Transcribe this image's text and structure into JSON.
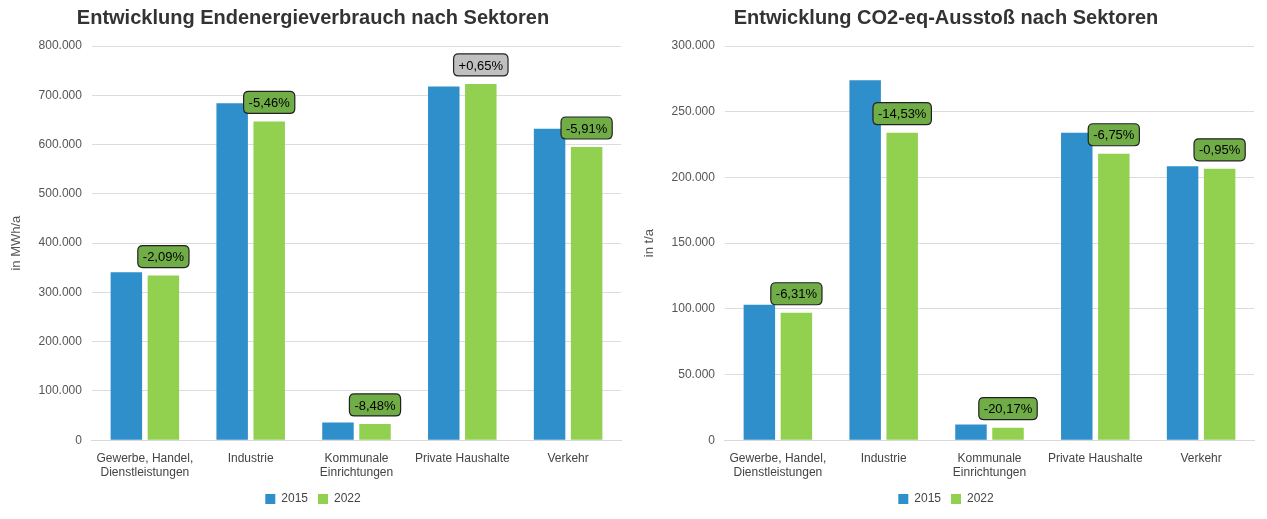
{
  "chart_data": [
    {
      "type": "bar",
      "title": "Entwicklung Endenergieverbrauch nach Sektoren",
      "ylabel": "in MWh/a",
      "categories": [
        "Gewerbe, Handel, Dienstleistungen",
        "Industrie",
        "Kommunale Einrichtungen",
        "Private Haushalte",
        "Verkehr"
      ],
      "series": [
        {
          "name": "2015",
          "color": "#2e8fcb",
          "values": [
            341000,
            684000,
            36000,
            718000,
            632000
          ]
        },
        {
          "name": "2022",
          "color": "#92d050",
          "values": [
            334000,
            647000,
            33000,
            723000,
            595000
          ]
        }
      ],
      "ylim": [
        0,
        800000
      ],
      "yticks": [
        {
          "value": 0,
          "label": "0"
        },
        {
          "value": 100000,
          "label": "100.000"
        },
        {
          "value": 200000,
          "label": "200.000"
        },
        {
          "value": 300000,
          "label": "300.000"
        },
        {
          "value": 400000,
          "label": "400.000"
        },
        {
          "value": 500000,
          "label": "500.000"
        },
        {
          "value": 600000,
          "label": "600.000"
        },
        {
          "value": 700000,
          "label": "700.000"
        },
        {
          "value": 800000,
          "label": "800.000"
        }
      ],
      "annotations": [
        {
          "text": "-2,09%",
          "x": "Gewerbe, Handel, Dienstleistungen",
          "y": 334000
        },
        {
          "text": "-5,46%",
          "x": "Industrie",
          "y": 647000
        },
        {
          "text": "-8,48%",
          "x": "Kommunale Einrichtungen",
          "y": 33000
        },
        {
          "text": "+0,65%",
          "x": "Private Haushalte",
          "y": 723000
        },
        {
          "text": "-5,91%",
          "x": "Verkehr",
          "y": 595000
        }
      ],
      "grid": "y",
      "legend": "bottom"
    },
    {
      "type": "bar",
      "title": "Entwicklung CO2-eq-Ausstoß nach Sektoren",
      "ylabel": "in t/a",
      "categories": [
        "Gewerbe, Handel, Dienstleistungen",
        "Industrie",
        "Kommunale Einrichtungen",
        "Private Haushalte",
        "Verkehr"
      ],
      "series": [
        {
          "name": "2015",
          "color": "#2e8fcb",
          "values": [
            103000,
            274000,
            12000,
            234000,
            208500
          ]
        },
        {
          "name": "2022",
          "color": "#92d050",
          "values": [
            97000,
            234000,
            9500,
            218000,
            206500
          ]
        }
      ],
      "ylim": [
        0,
        300000
      ],
      "yticks": [
        {
          "value": 0,
          "label": "0"
        },
        {
          "value": 50000,
          "label": "50.000"
        },
        {
          "value": 100000,
          "label": "100.000"
        },
        {
          "value": 150000,
          "label": "150.000"
        },
        {
          "value": 200000,
          "label": "200.000"
        },
        {
          "value": 250000,
          "label": "250.000"
        },
        {
          "value": 300000,
          "label": "300.000"
        }
      ],
      "annotations": [
        {
          "text": "-6,31%",
          "x": "Gewerbe, Handel, Dienstleistungen",
          "y": 97000
        },
        {
          "text": "-14,53%",
          "x": "Industrie",
          "y": 234000
        },
        {
          "text": "-20,17%",
          "x": "Kommunale Einrichtungen",
          "y": 9500
        },
        {
          "text": "-6,75%",
          "x": "Private Haushalte",
          "y": 218000
        },
        {
          "text": "-0,95%",
          "x": "Verkehr",
          "y": 206500
        }
      ],
      "grid": "y",
      "legend": "bottom"
    }
  ]
}
